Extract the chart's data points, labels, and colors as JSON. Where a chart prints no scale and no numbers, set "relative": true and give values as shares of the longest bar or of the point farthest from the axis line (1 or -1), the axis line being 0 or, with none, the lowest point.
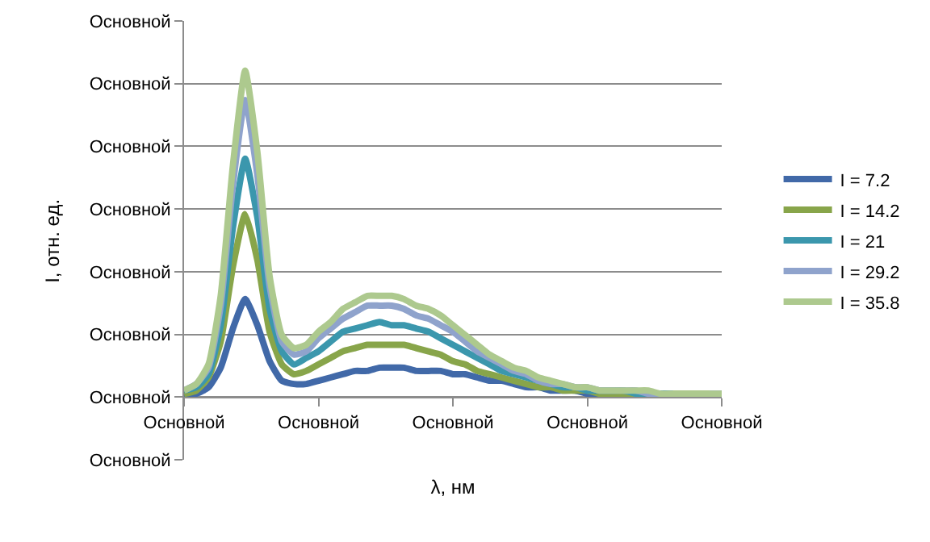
{
  "chart_data": {
    "type": "line",
    "xlabel": "λ, нм",
    "relative": true,
    "categories": [
      null,
      null,
      null,
      null,
      null,
      null,
      null,
      null,
      null,
      null,
      null,
      null,
      null,
      null,
      null,
      null,
      null,
      null,
      null,
      null,
      null,
      null,
      null,
      null,
      null,
      null,
      null,
      null,
      null,
      null,
      null,
      null,
      null,
      null,
      null,
      null,
      null,
      null,
      null,
      null,
      null,
      null,
      null,
      null,
      null
    ],
    "series": [
      {
        "name": "I = 7.2",
        "color": "#4169a8",
        "values": [
          0.01,
          0.01,
          0.03,
          0.09,
          0.21,
          0.3,
          0.22,
          0.11,
          0.05,
          0.04,
          0.04,
          0.05,
          0.06,
          0.07,
          0.08,
          0.08,
          0.09,
          0.09,
          0.09,
          0.08,
          0.08,
          0.08,
          0.07,
          0.07,
          0.06,
          0.05,
          0.05,
          0.04,
          0.03,
          0.03,
          0.02,
          0.02,
          0.02,
          0.01,
          0.01,
          0.01,
          0.01,
          0.01,
          0.01,
          0.01,
          0.01,
          null,
          null,
          null,
          null
        ]
      },
      {
        "name": "I = 14.2",
        "color": "#88a54a",
        "values": [
          0.01,
          0.02,
          0.06,
          0.17,
          0.4,
          0.56,
          0.42,
          0.2,
          0.1,
          0.07,
          0.08,
          0.1,
          0.12,
          0.14,
          0.15,
          0.16,
          0.16,
          0.16,
          0.16,
          0.15,
          0.14,
          0.13,
          0.11,
          0.1,
          0.08,
          0.07,
          0.06,
          0.05,
          0.04,
          0.03,
          0.03,
          0.02,
          0.02,
          0.02,
          0.01,
          0.01,
          0.01,
          0.01,
          0.01,
          0.01,
          0.01,
          0.01,
          0.01,
          0.01,
          0.01
        ]
      },
      {
        "name": "I = 21",
        "color": "#3b97ad",
        "values": [
          0.02,
          0.03,
          0.07,
          0.22,
          0.52,
          0.73,
          0.55,
          0.27,
          0.14,
          0.1,
          0.12,
          0.14,
          0.17,
          0.2,
          0.21,
          0.22,
          0.23,
          0.22,
          0.22,
          0.21,
          0.2,
          0.18,
          0.16,
          0.14,
          0.12,
          0.1,
          0.08,
          0.07,
          0.06,
          0.05,
          0.04,
          0.03,
          0.03,
          0.02,
          0.02,
          0.02,
          0.02,
          0.01,
          0.01,
          0.01,
          0.01,
          null,
          null,
          null,
          null
        ]
      },
      {
        "name": "I = 29.2",
        "color": "#8fa3cc",
        "values": [
          0.02,
          0.04,
          0.09,
          0.28,
          0.65,
          0.91,
          0.68,
          0.34,
          0.17,
          0.13,
          0.14,
          0.18,
          0.21,
          0.24,
          0.26,
          0.28,
          0.28,
          0.28,
          0.27,
          0.25,
          0.24,
          0.22,
          0.2,
          0.17,
          0.14,
          0.12,
          0.1,
          0.08,
          0.07,
          0.05,
          0.04,
          0.04,
          0.03,
          0.03,
          0.02,
          0.02,
          0.02,
          0.02,
          0.01,
          0.01,
          null,
          null,
          null,
          0.01,
          0.01
        ]
      },
      {
        "name": "I = 35.8",
        "color": "#adc98e",
        "values": [
          0.02,
          0.04,
          0.1,
          0.31,
          0.71,
          1,
          0.75,
          0.37,
          0.19,
          0.15,
          0.16,
          0.2,
          0.23,
          0.27,
          0.29,
          0.31,
          0.31,
          0.31,
          0.3,
          0.28,
          0.27,
          0.25,
          0.22,
          0.19,
          0.16,
          0.13,
          0.11,
          0.09,
          0.08,
          0.06,
          0.05,
          0.04,
          0.03,
          0.03,
          0.02,
          0.02,
          0.02,
          0.02,
          0.02,
          0.01,
          0.01,
          0.01,
          0.01,
          0.01,
          0.01
        ]
      }
    ],
    "annotations": [
      "Основной",
      "Основной",
      "Основной",
      "Основной",
      "Основной",
      "Основной",
      "Основной",
      "Основной",
      "Основной",
      "Основной",
      "Основной",
      "Основной",
      "Основной",
      "I, отн. ед."
    ],
    "grid": "y",
    "legend": "right",
    "marker": "none",
    "line_style": "solid"
  }
}
